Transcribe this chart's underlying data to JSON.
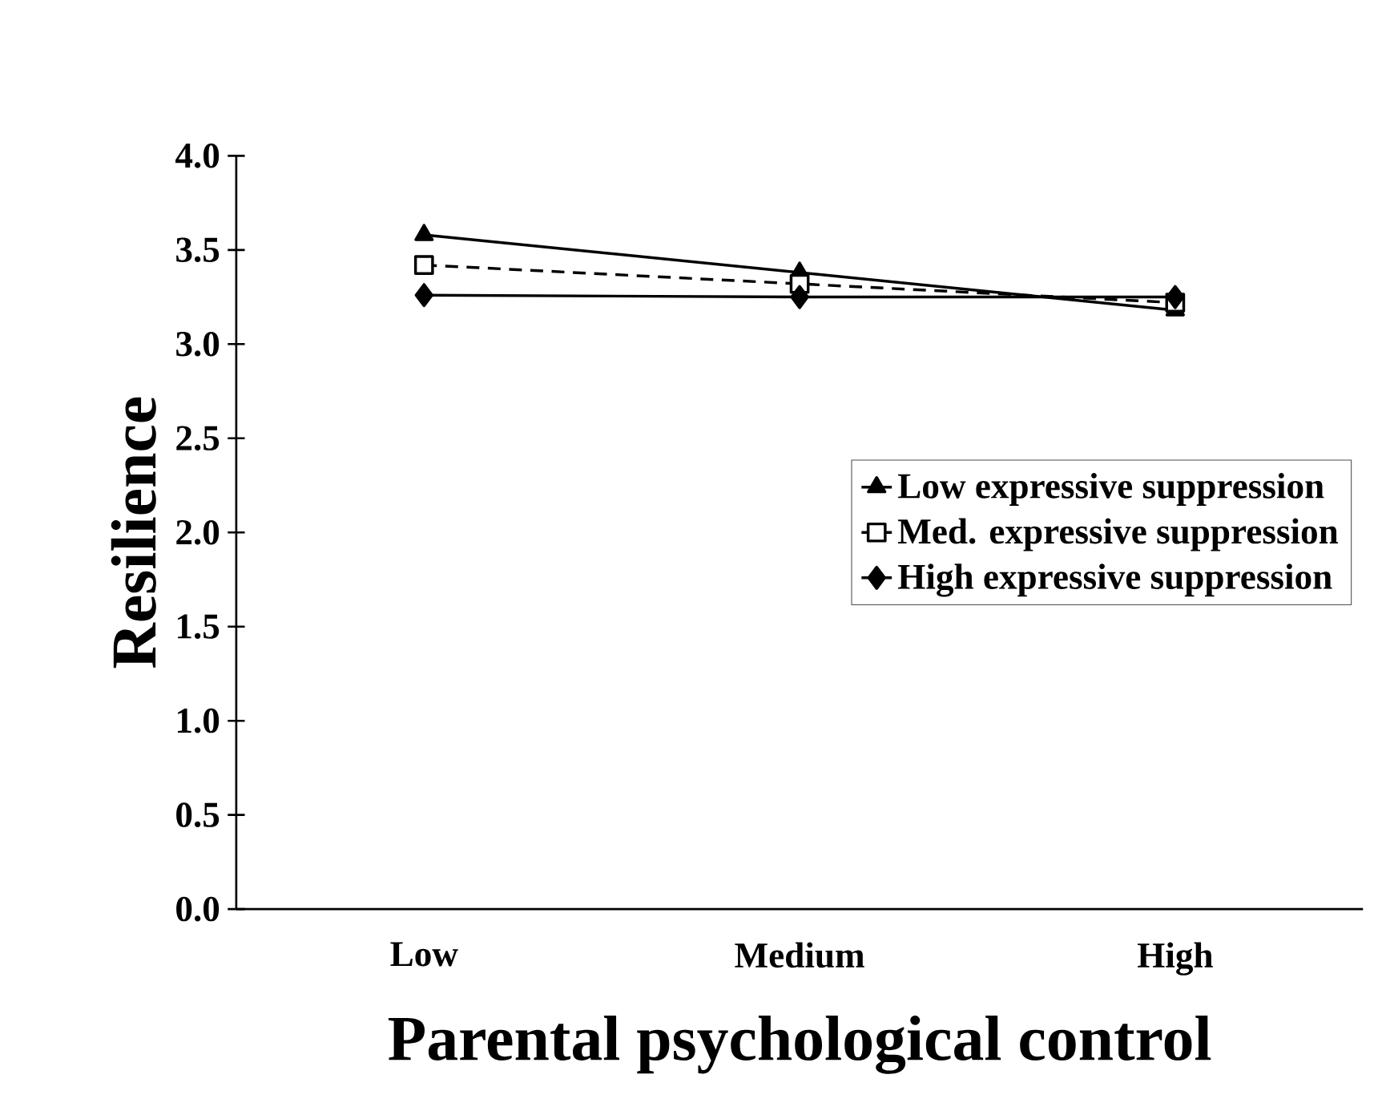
{
  "chart_data": {
    "type": "line",
    "xlabel": "Parental psychological control",
    "ylabel": "Resilience",
    "categories": [
      "Low",
      "Medium",
      "High"
    ],
    "ylim": [
      0,
      4
    ],
    "yticks": [
      {
        "value": 0,
        "label": "0.0"
      },
      {
        "value": 0.5,
        "label": "0.5"
      },
      {
        "value": 1,
        "label": "1.0"
      },
      {
        "value": 1.5,
        "label": "1.5"
      },
      {
        "value": 2,
        "label": "2.0"
      },
      {
        "value": 2.5,
        "label": "2.5"
      },
      {
        "value": 3,
        "label": "3.0"
      },
      {
        "value": 3.5,
        "label": "3.5"
      },
      {
        "value": 4,
        "label": "4.0"
      }
    ],
    "grid": false,
    "legend": "right",
    "series": [
      {
        "name": "Low expressive suppression",
        "color": "#000000",
        "marker": "triangle",
        "line_style": "solid",
        "values": [
          3.58,
          3.38,
          3.18
        ]
      },
      {
        "name": "Med. expressive suppression",
        "color": "#000000",
        "marker": "square",
        "line_style": "dashed",
        "values": [
          3.42,
          3.32,
          3.22
        ]
      },
      {
        "name": "High expressive suppression",
        "color": "#000000",
        "marker": "diamond",
        "line_style": "solid",
        "values": [
          3.26,
          3.25,
          3.25
        ]
      }
    ]
  }
}
